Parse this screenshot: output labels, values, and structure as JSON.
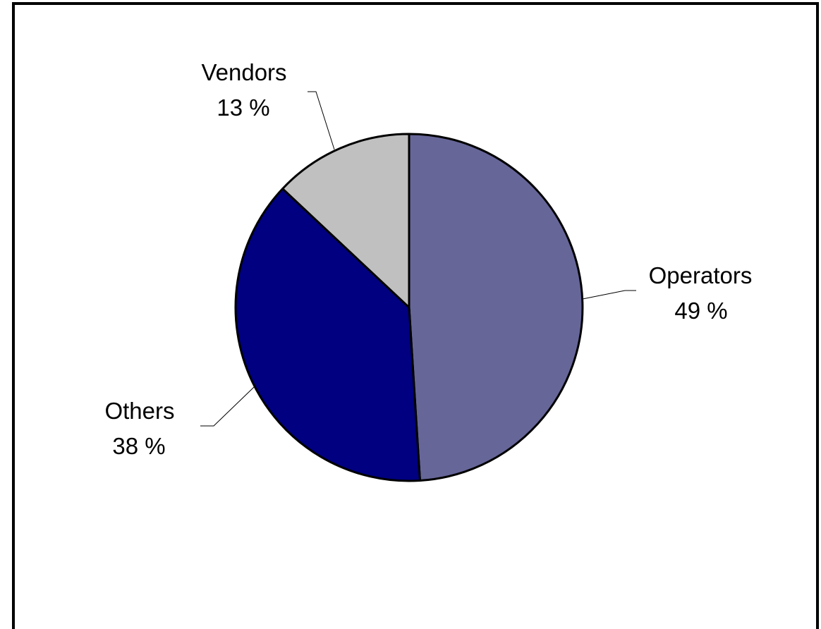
{
  "chart_data": {
    "type": "pie",
    "title": "",
    "slices": [
      {
        "label": "Operators",
        "value": 49,
        "value_text": "49 %",
        "color": "#666699"
      },
      {
        "label": "Others",
        "value": 38,
        "value_text": "38 %",
        "color": "#000080"
      },
      {
        "label": "Vendors",
        "value": 13,
        "value_text": "13 %",
        "color": "#c0c0c0"
      }
    ],
    "start_angle": "12 o'clock",
    "direction": "clockwise",
    "legend": "none",
    "slice_outline_color": "#000000"
  }
}
